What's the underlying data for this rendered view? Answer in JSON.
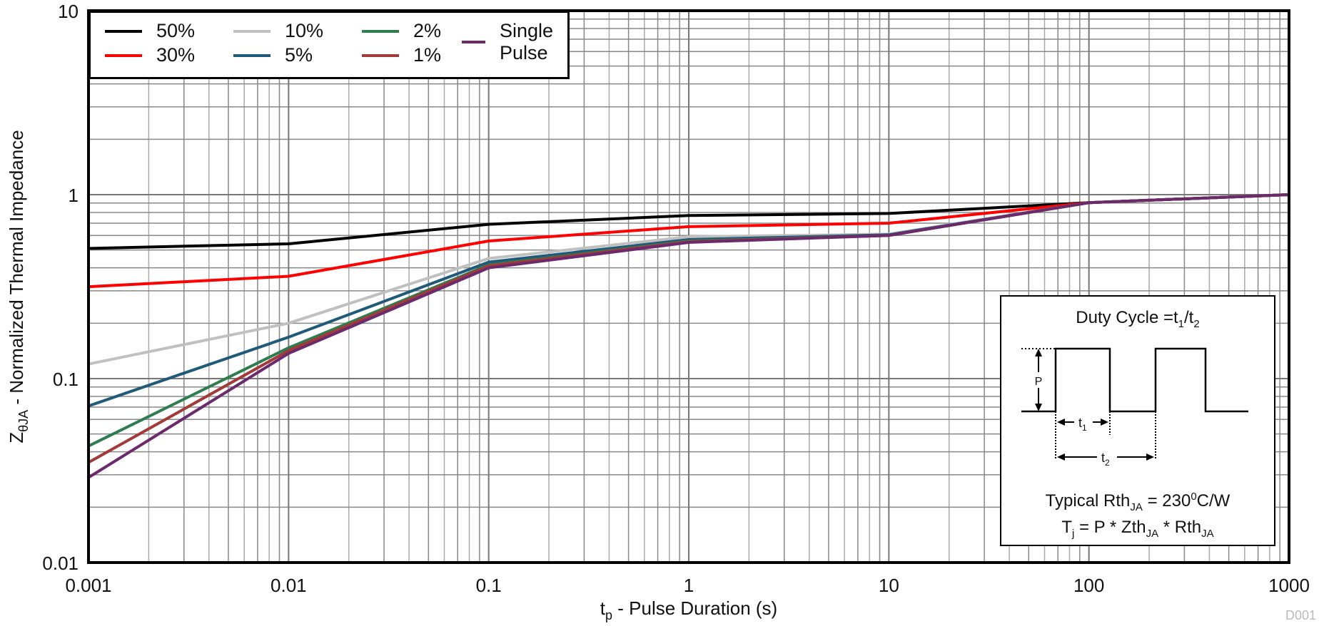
{
  "chart_data": {
    "type": "line",
    "title": "",
    "xlabel": "t_p - Pulse Duration (s)",
    "xlabel_main": "t",
    "xlabel_sub": "p",
    "xlabel_rest": " - Pulse Duration (s)",
    "ylabel": "Z_θJA - Normalized Thermal Impedance",
    "ylabel_main": "Z",
    "ylabel_sub": "θJA",
    "ylabel_rest": " - Normalized Thermal Impedance",
    "xscale": "log",
    "yscale": "log",
    "xlim": [
      0.001,
      1000
    ],
    "ylim": [
      0.01,
      10
    ],
    "xticks": [
      "0.001",
      "0.01",
      "0.1",
      "1",
      "10",
      "100",
      "1000"
    ],
    "yticks": [
      "0.01",
      "0.1",
      "1",
      "10"
    ],
    "grid": true,
    "legend_position": "upper-left",
    "x": [
      0.001,
      0.01,
      0.1,
      1,
      10,
      100,
      1000
    ],
    "series": [
      {
        "name": "50%",
        "color": "#000000",
        "values": [
          0.51,
          0.54,
          0.69,
          0.77,
          0.79,
          0.905,
          1.0
        ]
      },
      {
        "name": "30%",
        "color": "#ff0000",
        "values": [
          0.316,
          0.36,
          0.56,
          0.67,
          0.7,
          0.905,
          1.0
        ]
      },
      {
        "name": "10%",
        "color": "#c0c0c0",
        "values": [
          0.12,
          0.2,
          0.45,
          0.59,
          0.61,
          0.905,
          1.0
        ]
      },
      {
        "name": "5%",
        "color": "#1f5a7a",
        "values": [
          0.071,
          0.168,
          0.43,
          0.57,
          0.605,
          0.905,
          1.0
        ]
      },
      {
        "name": "2%",
        "color": "#2e7d4f",
        "values": [
          0.043,
          0.147,
          0.415,
          0.56,
          0.6,
          0.905,
          1.0
        ]
      },
      {
        "name": "1%",
        "color": "#a33a3a",
        "values": [
          0.035,
          0.142,
          0.41,
          0.555,
          0.6,
          0.905,
          1.0
        ]
      },
      {
        "name": "Single Pulse",
        "color": "#6b2a6b",
        "values": [
          0.029,
          0.137,
          0.4,
          0.55,
          0.6,
          0.905,
          1.0
        ]
      }
    ],
    "annotations": {
      "inset_title": "Duty Cycle =t1/t2",
      "typical_rth": "Typical RthJA = 230°C/W",
      "tj_formula": "Tj = P * ZthJA * RthJA"
    }
  },
  "legend": {
    "items": [
      {
        "label": "50%",
        "color": "#000000"
      },
      {
        "label": "30%",
        "color": "#ff0000"
      },
      {
        "label": "10%",
        "color": "#c0c0c0"
      },
      {
        "label": "5%",
        "color": "#1f5a7a"
      },
      {
        "label": "2%",
        "color": "#2e7d4f"
      },
      {
        "label": "1%",
        "color": "#a33a3a"
      },
      {
        "label": "Single Pulse",
        "color": "#6b2a6b"
      }
    ]
  },
  "inset": {
    "title_main": "Duty Cycle =t",
    "title_sub1": "1",
    "title_slash": "/t",
    "title_sub2": "2",
    "p_label": "P",
    "t1_main": "t",
    "t1_sub": "1",
    "t2_main": "t",
    "t2_sub": "2",
    "line1_a": "Typical Rth",
    "line1_sub": "JA",
    "line1_b": " = 230",
    "line1_sup": "0",
    "line1_c": "C/W",
    "line2_a": "T",
    "line2_sub1": "j",
    "line2_b": " = P * Zth",
    "line2_sub2": "JA",
    "line2_c": " * Rth",
    "line2_sub3": "JA"
  },
  "figure_id": "D001"
}
